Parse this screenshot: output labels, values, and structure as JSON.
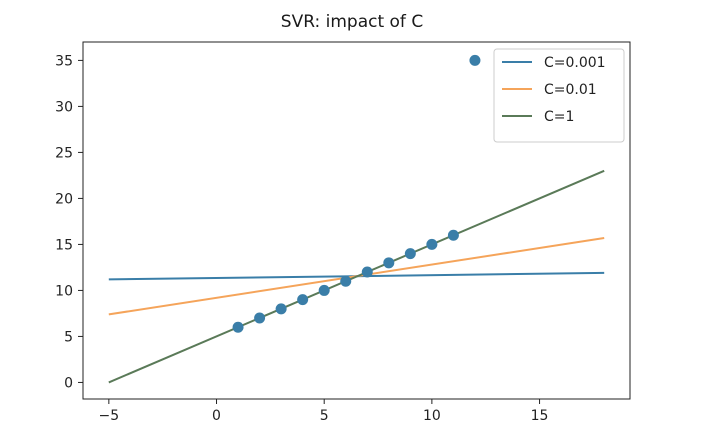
{
  "chart_data": {
    "type": "scatter",
    "title": "SVR: impact of C",
    "xlabel": "",
    "ylabel": "",
    "xlim": [
      -6.2,
      19.2
    ],
    "ylim": [
      -1.8,
      37
    ],
    "xticks": [
      -5,
      0,
      5,
      10,
      15
    ],
    "yticks": [
      0,
      5,
      10,
      15,
      20,
      25,
      30,
      35
    ],
    "grid": false,
    "legend_position": "top-right",
    "scatter": {
      "color": "#3a7ea8",
      "points": [
        {
          "x": 1,
          "y": 6
        },
        {
          "x": 2,
          "y": 7
        },
        {
          "x": 3,
          "y": 8
        },
        {
          "x": 4,
          "y": 9
        },
        {
          "x": 5,
          "y": 10
        },
        {
          "x": 6,
          "y": 11
        },
        {
          "x": 7,
          "y": 12
        },
        {
          "x": 8,
          "y": 13
        },
        {
          "x": 9,
          "y": 14
        },
        {
          "x": 10,
          "y": 15
        },
        {
          "x": 11,
          "y": 16
        },
        {
          "x": 12,
          "y": 35
        }
      ]
    },
    "series": [
      {
        "name": "C=0.001",
        "color": "#3a7ea8",
        "x": [
          -5,
          18
        ],
        "y": [
          11.2,
          11.9
        ]
      },
      {
        "name": "C=0.01",
        "color": "#f5a45a",
        "x": [
          -5,
          18
        ],
        "y": [
          7.4,
          15.7
        ]
      },
      {
        "name": "C=1",
        "color": "#5a7a58",
        "x": [
          -5,
          18
        ],
        "y": [
          0,
          23
        ]
      }
    ]
  }
}
